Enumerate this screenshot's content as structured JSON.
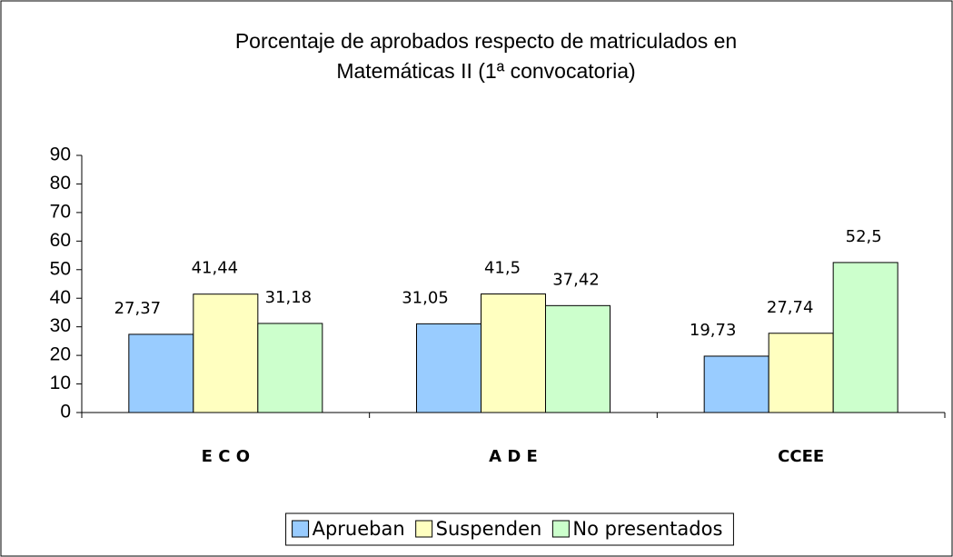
{
  "chart_data": {
    "type": "bar",
    "title": [
      "Porcentaje de aprobados respecto de matriculados en",
      "Matemáticas II (1ª convocatoria)"
    ],
    "categories": [
      "E C O",
      "A D E",
      "CCEE"
    ],
    "series": [
      {
        "name": "Aprueban",
        "color": "#99ccff",
        "values": [
          27.37,
          31.05,
          19.73
        ],
        "value_labels": [
          "27,37",
          "31,05",
          "19,73"
        ]
      },
      {
        "name": "Suspenden",
        "color": "#ffffc0",
        "values": [
          41.44,
          41.5,
          27.74
        ],
        "value_labels": [
          "41,44",
          "41,5",
          "27,74"
        ]
      },
      {
        "name": "No presentados",
        "color": "#ccffcc",
        "values": [
          31.18,
          37.42,
          52.5
        ],
        "value_labels": [
          "31,18",
          "37,42",
          "52,5"
        ]
      }
    ],
    "ylim": [
      0,
      90
    ],
    "yticks": [
      0,
      10,
      20,
      30,
      40,
      50,
      60,
      70,
      80,
      90
    ],
    "grid": false,
    "legend": "bottom"
  }
}
